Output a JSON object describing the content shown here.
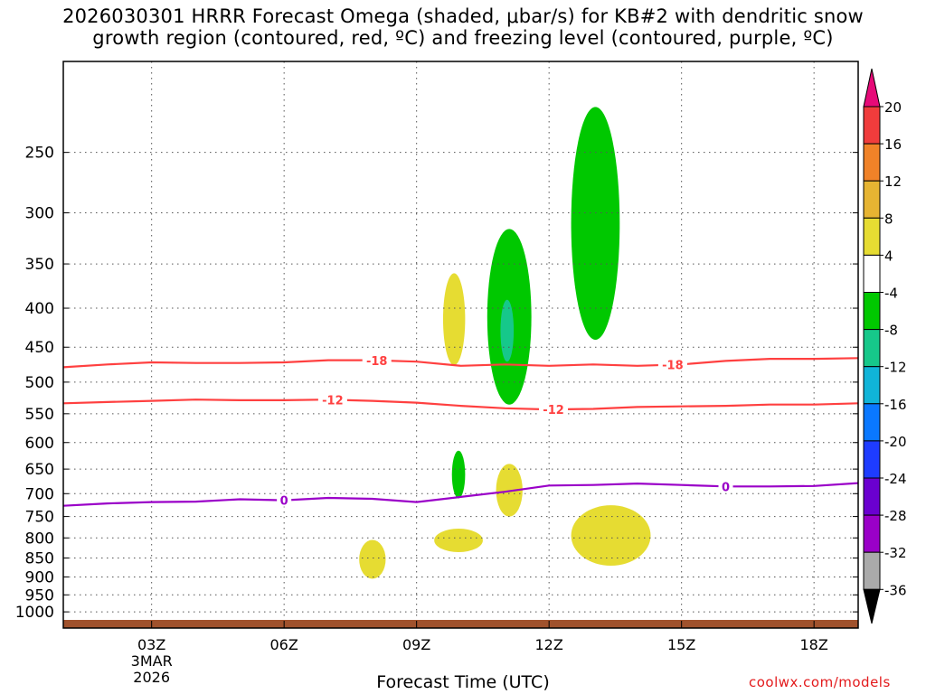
{
  "title": {
    "line1": "2026030301 HRRR Forecast Omega (shaded, μbar/s) for KB#2 with dendritic snow",
    "line2": "growth region (contoured, red, ºC) and freezing level (contoured, purple, ºC)"
  },
  "credit": "coolwx.com/models",
  "chart_data": {
    "type": "heatmap",
    "title": "2026030301 HRRR Forecast Omega (shaded, μbar/s) for KB#2 with dendritic snow growth region (contoured, red, ºC) and freezing level (contoured, purple, ºC)",
    "xlabel": "Forecast Time (UTC)",
    "ylabel": "",
    "x_range_hours_utc": [
      1,
      19
    ],
    "x_ticks": [
      {
        "hour": 3,
        "label": "03Z"
      },
      {
        "hour": 6,
        "label": "06Z"
      },
      {
        "hour": 9,
        "label": "09Z"
      },
      {
        "hour": 12,
        "label": "12Z"
      },
      {
        "hour": 15,
        "label": "15Z"
      },
      {
        "hour": 18,
        "label": "18Z"
      }
    ],
    "date_label": [
      "3MAR",
      "2026"
    ],
    "y_axis": "pressure (hPa), log scale, inverted",
    "y_range": [
      1050,
      190
    ],
    "y_ticks": [
      250,
      300,
      350,
      400,
      450,
      500,
      550,
      600,
      650,
      700,
      750,
      800,
      850,
      900,
      950,
      1000
    ],
    "grid": true,
    "colorbar": {
      "levels": [
        -36,
        -32,
        -28,
        -24,
        -20,
        -16,
        -12,
        -8,
        -4,
        4,
        8,
        12,
        16,
        20
      ],
      "colors": [
        "#000000",
        "#aaaaaa",
        "#9a00c8",
        "#6a00d0",
        "#1e3cff",
        "#0a78ff",
        "#10b4d8",
        "#16c88a",
        "#00c800",
        "#ffffff",
        "#e6dc32",
        "#e6b432",
        "#f08228",
        "#f03c3c",
        "#e60a78"
      ]
    },
    "omega_areas": [
      {
        "bin": "4 to 8",
        "color": "#e6dc32",
        "hour_range": [
          9.6,
          10.1
        ],
        "pressure_range": [
          475,
          360
        ]
      },
      {
        "bin": "-4 to -8",
        "color": "#00c800",
        "hour_range": [
          10.6,
          11.6
        ],
        "pressure_range": [
          535,
          315
        ]
      },
      {
        "bin": "-8 to -12",
        "color": "#16c88a",
        "hour_range": [
          10.9,
          11.2
        ],
        "pressure_range": [
          470,
          390
        ]
      },
      {
        "bin": "-4 to -8",
        "color": "#00c800",
        "hour_range": [
          12.5,
          13.6
        ],
        "pressure_range": [
          440,
          218
        ]
      },
      {
        "bin": "-4 to -8",
        "color": "#00c800",
        "hour_range": [
          9.8,
          10.1
        ],
        "pressure_range": [
          710,
          615
        ]
      },
      {
        "bin": "4 to 8",
        "color": "#e6dc32",
        "hour_range": [
          10.8,
          11.4
        ],
        "pressure_range": [
          750,
          640
        ]
      },
      {
        "bin": "4 to 8",
        "color": "#e6dc32",
        "hour_range": [
          9.4,
          10.5
        ],
        "pressure_range": [
          835,
          778
        ]
      },
      {
        "bin": "4 to 8",
        "color": "#e6dc32",
        "hour_range": [
          12.5,
          14.3
        ],
        "pressure_range": [
          870,
          725
        ]
      },
      {
        "bin": "4 to 8",
        "color": "#e6dc32",
        "hour_range": [
          7.7,
          8.3
        ],
        "pressure_range": [
          905,
          805
        ]
      }
    ],
    "isotherm_-18": {
      "label": "-18",
      "color": "#ff4040",
      "points": [
        [
          1,
          478
        ],
        [
          2,
          474
        ],
        [
          3,
          471
        ],
        [
          4,
          472
        ],
        [
          5,
          472
        ],
        [
          6,
          471
        ],
        [
          7,
          468
        ],
        [
          8,
          468
        ],
        [
          9,
          470
        ],
        [
          10,
          476
        ],
        [
          11,
          474
        ],
        [
          12,
          476
        ],
        [
          13,
          474
        ],
        [
          14,
          476
        ],
        [
          15,
          474
        ],
        [
          16,
          469
        ],
        [
          17,
          466
        ],
        [
          18,
          466
        ],
        [
          19,
          465
        ]
      ],
      "label_hours": [
        8.1,
        14.8
      ]
    },
    "isotherm_-12": {
      "label": "-12",
      "color": "#ff4040",
      "points": [
        [
          1,
          533
        ],
        [
          2,
          531
        ],
        [
          3,
          529
        ],
        [
          4,
          527
        ],
        [
          5,
          528
        ],
        [
          6,
          528
        ],
        [
          7,
          527
        ],
        [
          8,
          529
        ],
        [
          9,
          532
        ],
        [
          10,
          537
        ],
        [
          11,
          541
        ],
        [
          12,
          543
        ],
        [
          13,
          542
        ],
        [
          14,
          539
        ],
        [
          15,
          538
        ],
        [
          16,
          537
        ],
        [
          17,
          535
        ],
        [
          18,
          535
        ],
        [
          19,
          533
        ]
      ],
      "label_hours": [
        7.1,
        12.1
      ]
    },
    "isotherm_0": {
      "label": "0",
      "color": "#9a00c8",
      "points": [
        [
          1,
          726
        ],
        [
          2,
          721
        ],
        [
          3,
          718
        ],
        [
          4,
          717
        ],
        [
          5,
          712
        ],
        [
          6,
          714
        ],
        [
          7,
          709
        ],
        [
          8,
          711
        ],
        [
          9,
          718
        ],
        [
          10,
          707
        ],
        [
          11,
          696
        ],
        [
          12,
          683
        ],
        [
          13,
          682
        ],
        [
          14,
          679
        ],
        [
          15,
          682
        ],
        [
          16,
          685
        ],
        [
          17,
          685
        ],
        [
          18,
          684
        ],
        [
          19,
          678
        ]
      ],
      "label_hours": [
        6.0,
        16.0
      ]
    }
  }
}
